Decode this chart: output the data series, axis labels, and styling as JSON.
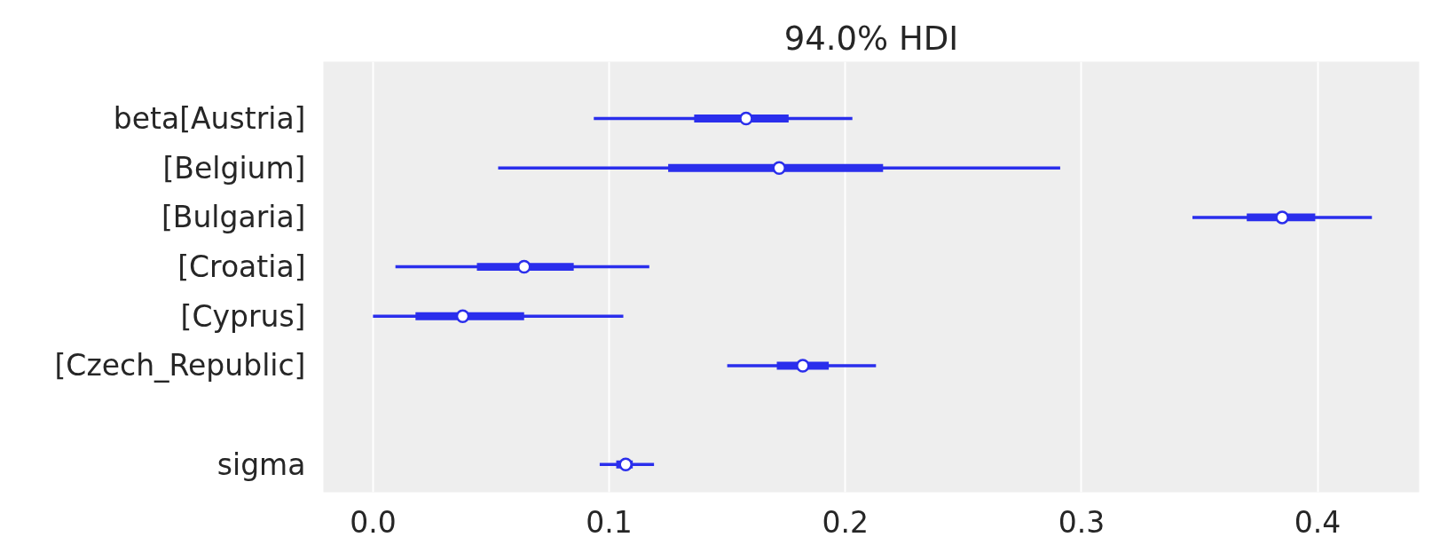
{
  "chart_data": {
    "type": "box",
    "title": "94.0% HDI",
    "orientation": "horizontal",
    "grid": "x",
    "categories": [
      "beta[Austria]",
      "[Belgium]",
      "[Bulgaria]",
      "[Croatia]",
      "[Cyprus]",
      "[Czech_Republic]",
      null,
      "sigma"
    ],
    "series": [
      {
        "color": "#2a2eec",
        "boxes": [
          {
            "low": 0.0935,
            "q1": 0.136,
            "median": 0.158,
            "q3": 0.176,
            "high": 0.203
          },
          {
            "low": 0.053,
            "q1": 0.125,
            "median": 0.172,
            "q3": 0.216,
            "high": 0.291
          },
          {
            "low": 0.347,
            "q1": 0.37,
            "median": 0.385,
            "q3": 0.399,
            "high": 0.423
          },
          {
            "low": 0.0095,
            "q1": 0.044,
            "median": 0.064,
            "q3": 0.085,
            "high": 0.117
          },
          {
            "low": 0.0,
            "q1": 0.018,
            "median": 0.038,
            "q3": 0.064,
            "high": 0.106
          },
          {
            "low": 0.15,
            "q1": 0.171,
            "median": 0.182,
            "q3": 0.193,
            "high": 0.213
          },
          null,
          {
            "low": 0.096,
            "q1": 0.103,
            "median": 0.107,
            "q3": 0.11,
            "high": 0.119
          }
        ]
      }
    ],
    "xlim": [
      -0.021,
      0.443
    ],
    "xticks": [
      {
        "value": 0,
        "label": "0.0"
      },
      0.1,
      0.2,
      0.3,
      0.4
    ]
  }
}
